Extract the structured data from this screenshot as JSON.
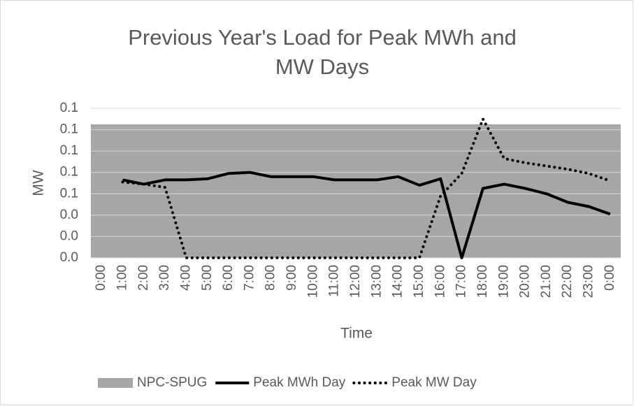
{
  "chart_data": {
    "type": "line",
    "title": [
      "Previous Year's Load for Peak MWh and",
      "MW Days"
    ],
    "x_label": "Time",
    "y_label": "MW",
    "categories": [
      "0:00",
      "1:00",
      "2:00",
      "3:00",
      "4:00",
      "5:00",
      "6:00",
      "7:00",
      "8:00",
      "9:00",
      "10:00",
      "11:00",
      "12:00",
      "13:00",
      "14:00",
      "15:00",
      "16:00",
      "17:00",
      "18:00",
      "19:00",
      "20:00",
      "21:00",
      "22:00",
      "23:00",
      "0:00"
    ],
    "ylim": [
      0,
      0.14
    ],
    "yticks": [
      {
        "value": 0,
        "label": "0.0"
      },
      {
        "value": 0.02,
        "label": "0.0"
      },
      {
        "value": 0.04,
        "label": "0.0"
      },
      {
        "value": 0.06,
        "label": "0.1"
      },
      {
        "value": 0.08,
        "label": "0.1"
      },
      {
        "value": 0.1,
        "label": "0.1"
      },
      {
        "value": 0.12,
        "label": "0.1"
      },
      {
        "value": 0.14,
        "label": "0.1"
      }
    ],
    "grid": true,
    "legend": "bottom",
    "series": [
      {
        "name": "NPC-SPUG",
        "type": "area",
        "color": "#a6a6a6",
        "values": [
          0.125,
          0.125,
          0.125,
          0.125,
          0.125,
          0.125,
          0.125,
          0.125,
          0.125,
          0.125,
          0.125,
          0.125,
          0.125,
          0.125,
          0.125,
          0.125,
          0.125,
          0.125,
          0.125,
          0.125,
          0.125,
          0.125,
          0.125,
          0.125,
          0.125
        ]
      },
      {
        "name": "Peak MWh Day",
        "type": "line",
        "style": "solid",
        "color": "#000000",
        "values": [
          null,
          0.073,
          0.069,
          0.073,
          0.073,
          0.074,
          0.079,
          0.08,
          0.076,
          0.076,
          0.076,
          0.073,
          0.073,
          0.073,
          0.076,
          0.068,
          0.074,
          0,
          0.065,
          0.069,
          0.065,
          0.06,
          0.052,
          0.048,
          0.041
        ]
      },
      {
        "name": "Peak MW Day",
        "type": "line",
        "style": "dotted",
        "color": "#000000",
        "values": [
          null,
          0.071,
          0.069,
          0.066,
          0,
          0,
          0,
          0,
          0,
          0,
          0,
          0,
          0,
          0,
          0,
          0,
          0.058,
          0.079,
          0.13,
          0.093,
          0.089,
          0.086,
          0.083,
          0.079,
          0.072
        ]
      }
    ]
  }
}
